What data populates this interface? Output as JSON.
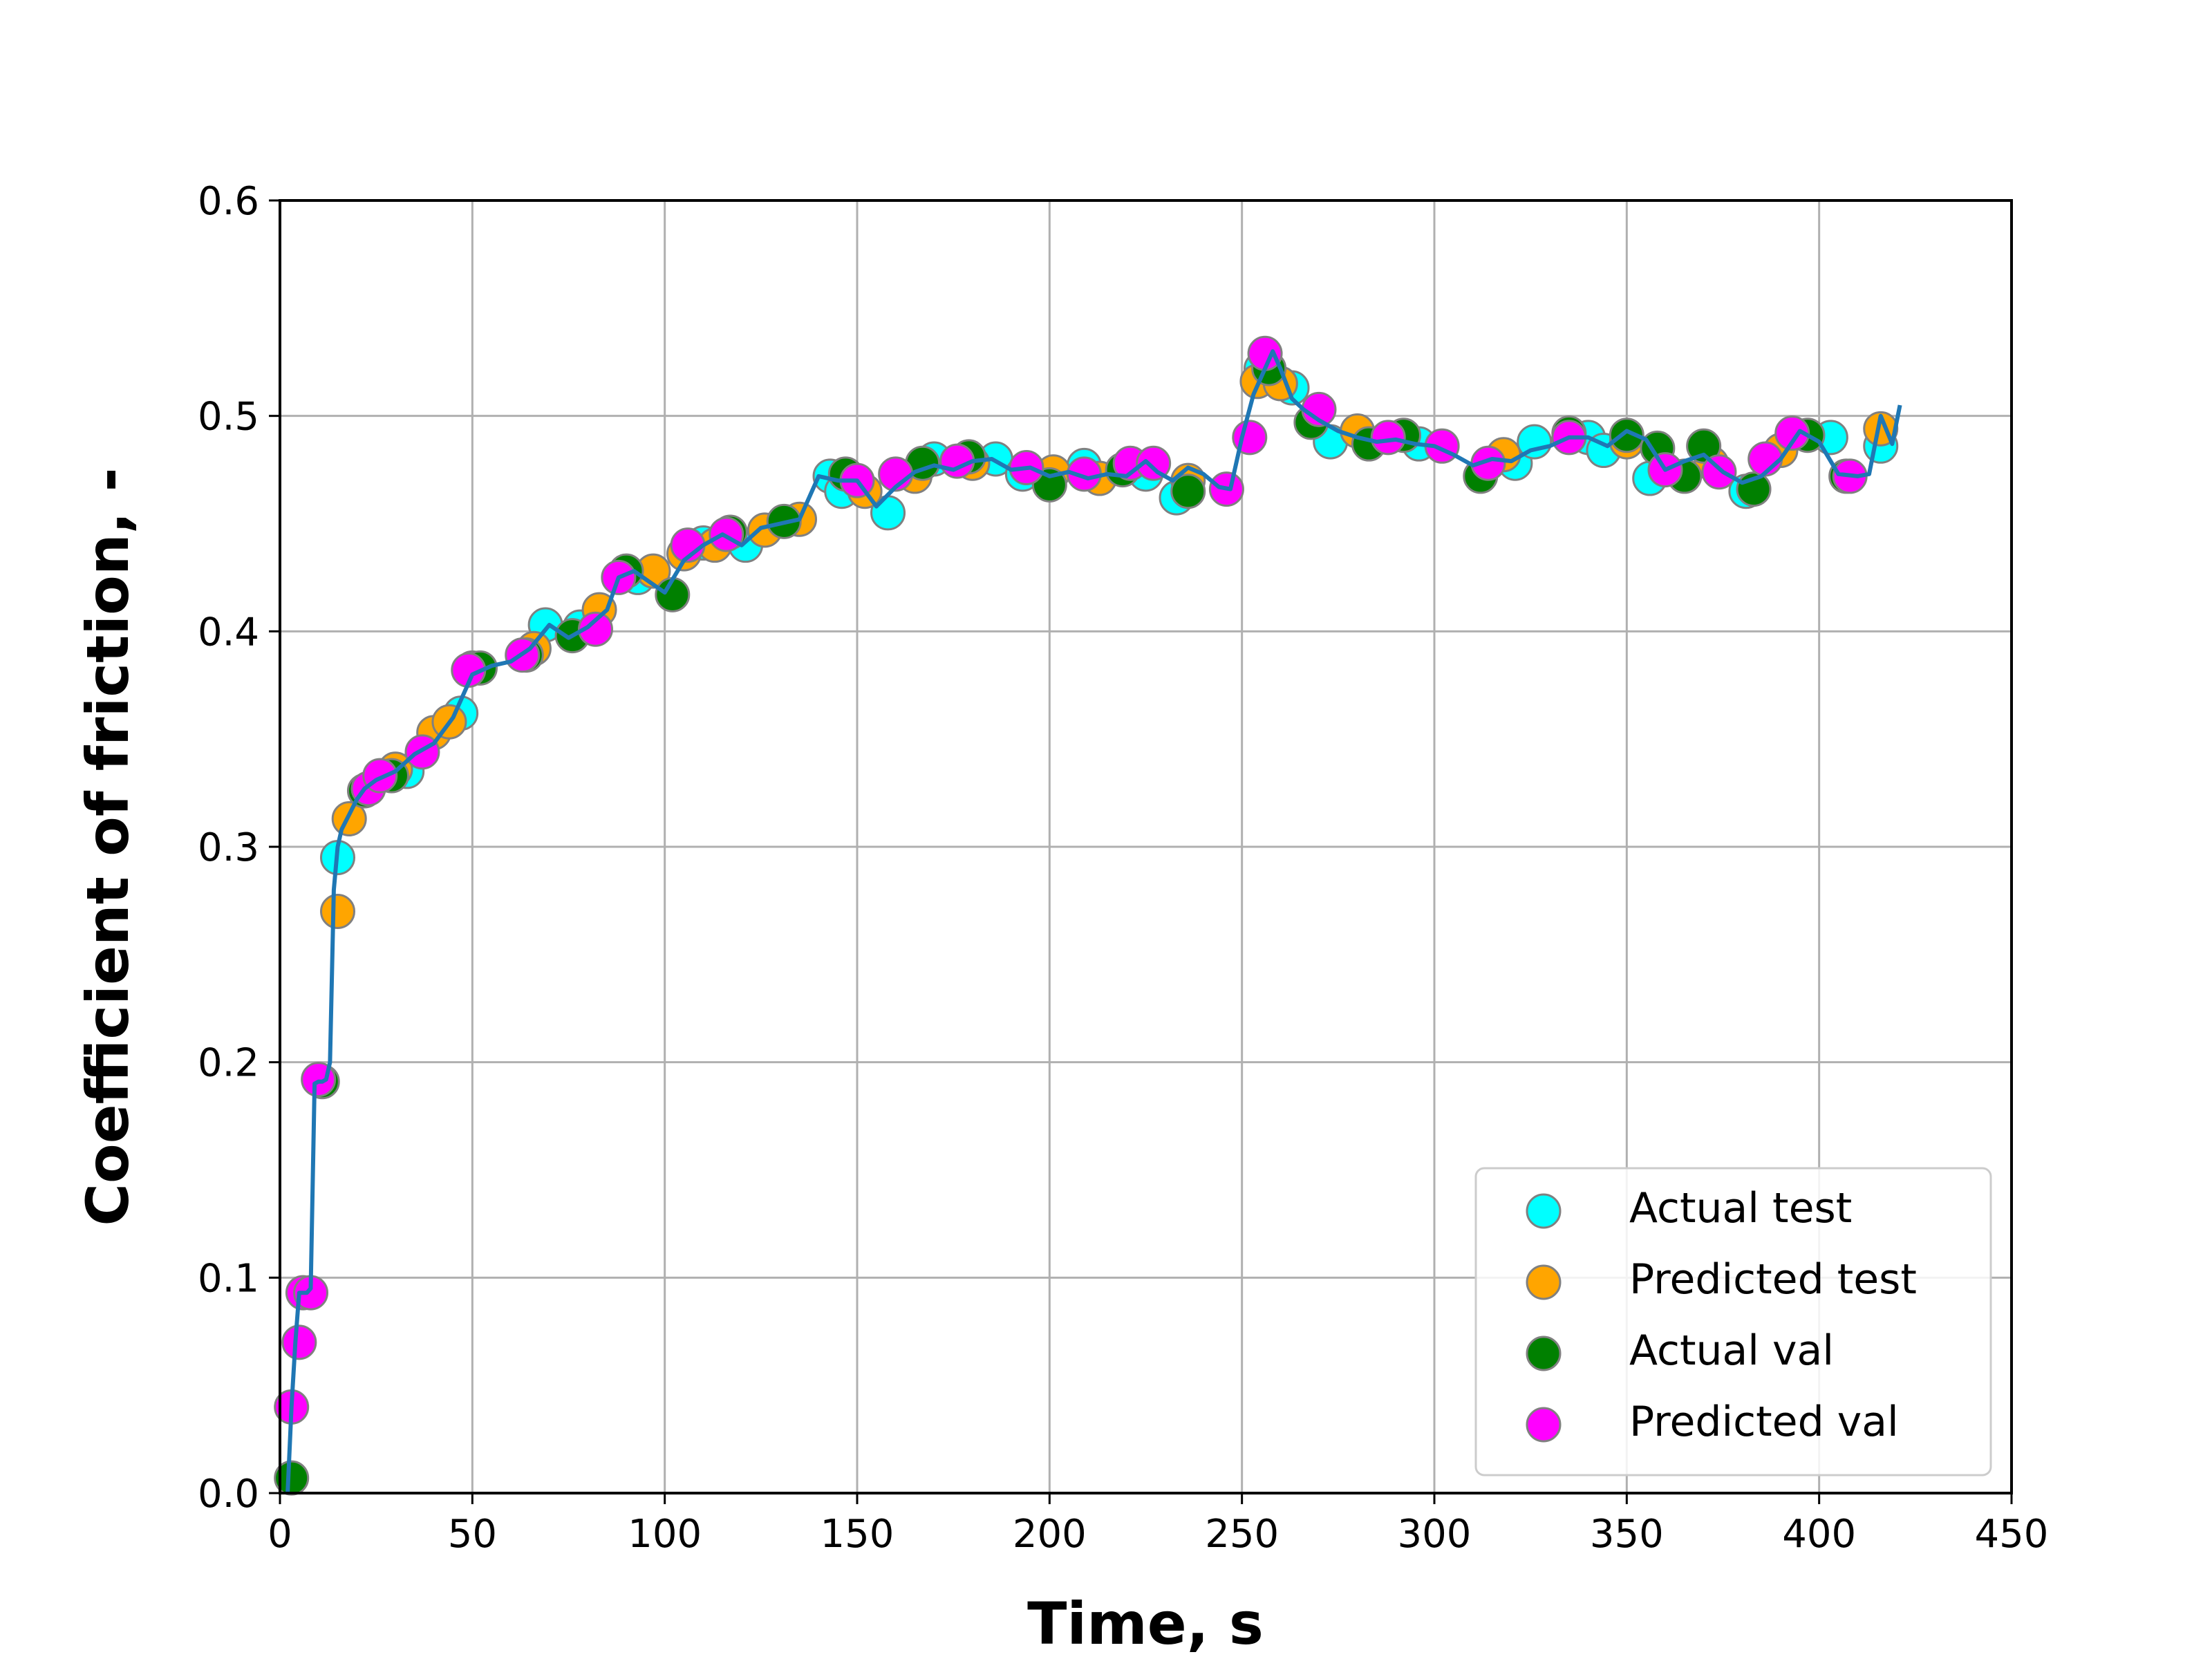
{
  "chart_data": {
    "type": "scatter",
    "xlabel": "Time, s",
    "ylabel": "Coefficient of friction, -",
    "xlim": [
      0,
      450
    ],
    "ylim": [
      0,
      0.6
    ],
    "x_ticks": [
      "0",
      "50",
      "100",
      "150",
      "200",
      "250",
      "300",
      "350",
      "400",
      "450"
    ],
    "y_ticks": [
      "0.0",
      "0.1",
      "0.2",
      "0.3",
      "0.4",
      "0.5",
      "0.6"
    ],
    "grid": true,
    "legend_position": "lower-right",
    "series": [
      {
        "name": "Actual test",
        "kind": "scatter",
        "color": "#00ffff",
        "x": [
          15,
          33,
          47,
          50,
          69,
          78,
          93,
          110,
          121,
          143,
          146,
          158,
          170,
          186,
          193,
          209,
          225,
          233,
          255,
          263,
          273,
          296,
          321,
          326,
          340,
          344,
          356,
          381,
          403,
          416
        ],
        "y": [
          0.295,
          0.335,
          0.362,
          0.383,
          0.403,
          0.402,
          0.425,
          0.441,
          0.44,
          0.472,
          0.465,
          0.455,
          0.48,
          0.48,
          0.473,
          0.477,
          0.473,
          0.462,
          0.522,
          0.513,
          0.488,
          0.487,
          0.478,
          0.488,
          0.49,
          0.484,
          0.471,
          0.465,
          0.49,
          0.486
        ]
      },
      {
        "name": "Predicted test",
        "kind": "scatter",
        "color": "#ffa500",
        "x": [
          15,
          18,
          30,
          40,
          44,
          66,
          83,
          97,
          105,
          113,
          126,
          135,
          152,
          165,
          180,
          201,
          213,
          236,
          254,
          260,
          280,
          318,
          350,
          372,
          390,
          416
        ],
        "y": [
          0.27,
          0.313,
          0.336,
          0.353,
          0.358,
          0.392,
          0.41,
          0.428,
          0.436,
          0.44,
          0.447,
          0.452,
          0.465,
          0.472,
          0.478,
          0.474,
          0.471,
          0.47,
          0.516,
          0.515,
          0.493,
          0.482,
          0.488,
          0.478,
          0.484,
          0.494
        ]
      },
      {
        "name": "Actual val",
        "kind": "scatter",
        "color": "#008000",
        "x": [
          3,
          11,
          22,
          29,
          52,
          64,
          76,
          90,
          102,
          117,
          131,
          147,
          167,
          179,
          200,
          219,
          236,
          257,
          268,
          283,
          292,
          312,
          335,
          350,
          358,
          365,
          370,
          383,
          397,
          407
        ],
        "y": [
          0.007,
          0.191,
          0.326,
          0.333,
          0.383,
          0.389,
          0.398,
          0.428,
          0.417,
          0.446,
          0.451,
          0.473,
          0.478,
          0.481,
          0.468,
          0.475,
          0.465,
          0.522,
          0.497,
          0.487,
          0.491,
          0.472,
          0.492,
          0.491,
          0.485,
          0.472,
          0.486,
          0.466,
          0.491,
          0.472
        ]
      },
      {
        "name": "Predicted val",
        "kind": "scatter",
        "color": "#ff00ff",
        "x": [
          3,
          5,
          6,
          8,
          10,
          23,
          26,
          37,
          49,
          63,
          82,
          88,
          106,
          116,
          150,
          160,
          176,
          194,
          209,
          221,
          227,
          246,
          252,
          256,
          270,
          288,
          302,
          314,
          335,
          360,
          374,
          386,
          393,
          408
        ],
        "y": [
          0.04,
          0.07,
          0.093,
          0.093,
          0.192,
          0.327,
          0.333,
          0.344,
          0.382,
          0.389,
          0.401,
          0.425,
          0.44,
          0.445,
          0.47,
          0.473,
          0.479,
          0.476,
          0.473,
          0.478,
          0.478,
          0.466,
          0.49,
          0.529,
          0.503,
          0.49,
          0.486,
          0.478,
          0.49,
          0.475,
          0.474,
          0.48,
          0.492,
          0.472
        ]
      },
      {
        "kind": "line",
        "color": "#1f77b4",
        "x": [
          2,
          3,
          4,
          5,
          6,
          7,
          8,
          9,
          10,
          11,
          12,
          13,
          14,
          15,
          16,
          18,
          20,
          22,
          25,
          30,
          35,
          40,
          45,
          50,
          55,
          60,
          65,
          70,
          75,
          80,
          85,
          88,
          92,
          96,
          100,
          105,
          110,
          115,
          120,
          125,
          130,
          135,
          140,
          145,
          150,
          155,
          160,
          165,
          170,
          175,
          180,
          185,
          190,
          195,
          200,
          205,
          210,
          215,
          220,
          225,
          228,
          232,
          236,
          240,
          244,
          247,
          250,
          253,
          256,
          258,
          260,
          263,
          266,
          270,
          275,
          280,
          285,
          290,
          295,
          300,
          305,
          310,
          315,
          320,
          325,
          330,
          335,
          340,
          345,
          350,
          355,
          360,
          365,
          370,
          375,
          380,
          385,
          390,
          395,
          400,
          405,
          410,
          413,
          416,
          419,
          421
        ],
        "y": [
          0.0,
          0.04,
          0.07,
          0.093,
          0.093,
          0.093,
          0.095,
          0.19,
          0.191,
          0.191,
          0.192,
          0.2,
          0.28,
          0.3,
          0.308,
          0.315,
          0.322,
          0.327,
          0.331,
          0.335,
          0.343,
          0.348,
          0.36,
          0.38,
          0.384,
          0.386,
          0.392,
          0.403,
          0.397,
          0.402,
          0.41,
          0.425,
          0.428,
          0.423,
          0.418,
          0.433,
          0.44,
          0.445,
          0.44,
          0.448,
          0.45,
          0.452,
          0.472,
          0.47,
          0.47,
          0.458,
          0.467,
          0.474,
          0.477,
          0.475,
          0.479,
          0.48,
          0.475,
          0.476,
          0.472,
          0.474,
          0.471,
          0.473,
          0.472,
          0.479,
          0.474,
          0.47,
          0.476,
          0.473,
          0.467,
          0.466,
          0.49,
          0.51,
          0.522,
          0.53,
          0.522,
          0.508,
          0.503,
          0.498,
          0.493,
          0.49,
          0.488,
          0.489,
          0.487,
          0.486,
          0.482,
          0.477,
          0.48,
          0.479,
          0.484,
          0.486,
          0.49,
          0.49,
          0.486,
          0.493,
          0.489,
          0.475,
          0.479,
          0.482,
          0.474,
          0.469,
          0.472,
          0.48,
          0.493,
          0.488,
          0.473,
          0.472,
          0.473,
          0.5,
          0.487,
          0.505
        ]
      }
    ]
  }
}
